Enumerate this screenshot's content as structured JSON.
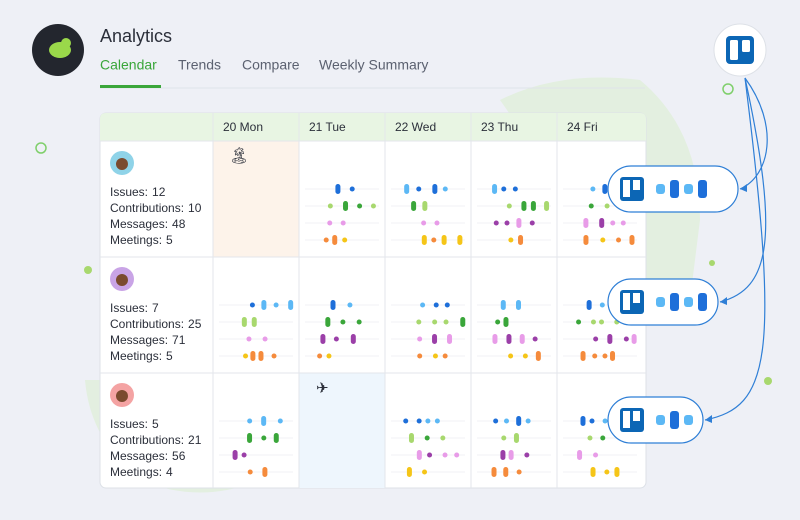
{
  "header": {
    "title": "Analytics",
    "tabs": [
      "Calendar",
      "Trends",
      "Compare",
      "Weekly Summary"
    ]
  },
  "calendar": {
    "days": [
      "20 Mon",
      "21 Tue",
      "22 Wed",
      "23 Thu",
      "24 Fri"
    ],
    "people": [
      {
        "stats": [
          {
            "label": "Issues:",
            "value": 12
          },
          {
            "label": "Contributions:",
            "value": 10
          },
          {
            "label": "Messages:",
            "value": 48
          },
          {
            "label": "Meetings:",
            "value": 5
          }
        ]
      },
      {
        "stats": [
          {
            "label": "Issues:",
            "value": 7
          },
          {
            "label": "Contributions:",
            "value": 25
          },
          {
            "label": "Messages:",
            "value": 71
          },
          {
            "label": "Meetings:",
            "value": 5
          }
        ]
      },
      {
        "stats": [
          {
            "label": "Issues:",
            "value": 5
          },
          {
            "label": "Contributions:",
            "value": 21
          },
          {
            "label": "Messages:",
            "value": 56
          },
          {
            "label": "Meetings:",
            "value": 4
          }
        ]
      }
    ]
  }
}
